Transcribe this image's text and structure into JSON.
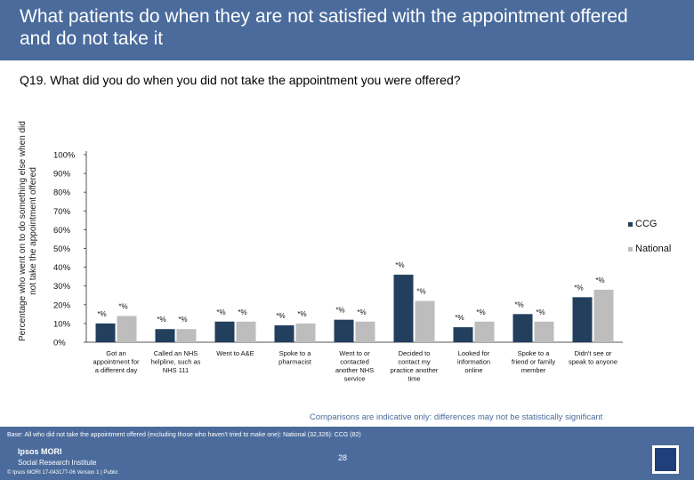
{
  "slide": {
    "title": "What patients do when they are not satisfied with the appointment offered and do not take it",
    "question": "Q19. What did you do when you did not take the appointment you were offered?",
    "note": "Comparisons are indicative only: differences may not be statistically significant",
    "base": "Base: All who did not take the appointment offered (excluding those who haven't tried to make one): National (32,326): CCG (82)",
    "page_number": "28",
    "logo_line1": "Ipsos MORI",
    "logo_line2": "Social Research Institute",
    "copyright": "© Ipsos MORI 17-043177-06 Version 1 | Public"
  },
  "colors": {
    "header": "#4a6b9c",
    "ccg": "#223f5e",
    "national": "#bdbdbd"
  },
  "chart_data": {
    "type": "bar",
    "ylabel": "Percentage who went on to do something else when did not take the appointment offered",
    "ylim": [
      0,
      100
    ],
    "yticks": [
      "0%",
      "10%",
      "20%",
      "30%",
      "40%",
      "50%",
      "60%",
      "70%",
      "80%",
      "90%",
      "100%"
    ],
    "categories": [
      [
        "Got an",
        "appointment for",
        "a different day"
      ],
      [
        "Called an NHS",
        "helpline, such as",
        "NHS 111"
      ],
      [
        "Went to A&E"
      ],
      [
        "Spoke to a",
        "pharmacist"
      ],
      [
        "Went to or",
        "contacted",
        "another NHS",
        "service"
      ],
      [
        "Decided to",
        "contact my",
        "practice another",
        "time"
      ],
      [
        "Looked for",
        "information",
        "online"
      ],
      [
        "Spoke to a",
        "friend or family",
        "member"
      ],
      [
        "Didn't see or",
        "speak to anyone"
      ]
    ],
    "series": [
      {
        "name": "CCG",
        "values": [
          10,
          7,
          11,
          9,
          12,
          36,
          8,
          15,
          24
        ],
        "labels": [
          "*%",
          "*%",
          "*%",
          "*%",
          "*%",
          "*%",
          "*%",
          "*%",
          "*%"
        ]
      },
      {
        "name": "National",
        "values": [
          14,
          7,
          11,
          10,
          11,
          22,
          11,
          11,
          28
        ],
        "labels": [
          "*%",
          "*%",
          "*%",
          "*%",
          "*%",
          "*%",
          "*%",
          "*%",
          "*%"
        ]
      }
    ],
    "legend": "right"
  }
}
